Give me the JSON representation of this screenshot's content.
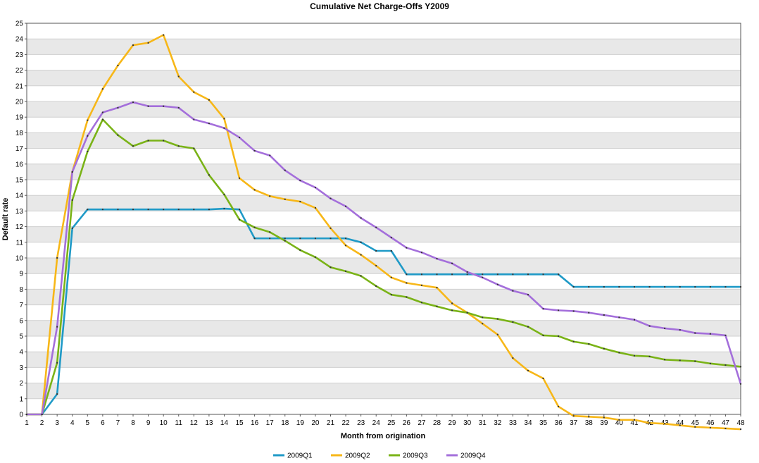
{
  "chart_data": {
    "type": "line",
    "title": "Cumulative Net Charge-Offs  Y2009",
    "xlabel": "Month from origination",
    "ylabel": "Default rate",
    "x": [
      1,
      2,
      3,
      4,
      5,
      6,
      7,
      8,
      9,
      10,
      11,
      12,
      13,
      14,
      15,
      16,
      17,
      18,
      19,
      20,
      21,
      22,
      23,
      24,
      25,
      26,
      27,
      28,
      29,
      30,
      31,
      32,
      33,
      34,
      35,
      36,
      37,
      38,
      39,
      40,
      41,
      42,
      43,
      44,
      45,
      46,
      47,
      48
    ],
    "xlim": [
      1,
      48
    ],
    "ylim": [
      0,
      25
    ],
    "yticks": [
      0,
      1,
      2,
      3,
      4,
      5,
      6,
      7,
      8,
      9,
      10,
      11,
      12,
      13,
      14,
      15,
      16,
      17,
      18,
      19,
      20,
      21,
      22,
      23,
      24,
      25
    ],
    "grid": true,
    "grid_style": "alternating horizontal bands",
    "legend_position": "bottom-center",
    "series": [
      {
        "name": "2009Q1",
        "color": "#1f9ac7",
        "values": [
          0,
          0,
          1.3,
          11.9,
          13.1,
          13.1,
          13.1,
          13.1,
          13.1,
          13.1,
          13.1,
          13.1,
          13.1,
          13.15,
          13.1,
          11.25,
          11.25,
          11.25,
          11.25,
          11.25,
          11.25,
          11.25,
          11.0,
          10.45,
          10.45,
          8.95,
          8.95,
          8.95,
          8.95,
          8.95,
          8.95,
          8.95,
          8.95,
          8.95,
          8.95,
          8.95,
          8.15,
          8.15,
          8.15,
          8.15,
          8.15,
          8.15,
          8.15,
          8.15,
          8.15,
          8.15,
          8.15,
          8.15
        ]
      },
      {
        "name": "2009Q2",
        "color": "#f7b718",
        "values": [
          0,
          0,
          10.0,
          15.5,
          18.8,
          20.8,
          22.3,
          23.6,
          23.75,
          24.25,
          21.6,
          20.6,
          20.1,
          18.9,
          15.1,
          14.35,
          13.95,
          13.75,
          13.6,
          13.2,
          11.9,
          10.8,
          10.2,
          9.5,
          8.75,
          8.4,
          8.25,
          8.1,
          7.1,
          6.5,
          5.8,
          5.1,
          3.6,
          2.8,
          2.3,
          0.5,
          -0.1,
          -0.15,
          -0.2,
          -0.35,
          -0.35,
          -0.55,
          -0.6,
          -0.7,
          -0.8,
          -0.85,
          -0.9,
          -0.95
        ]
      },
      {
        "name": "2009Q3",
        "color": "#7ab317",
        "values": [
          0,
          0,
          3.3,
          13.7,
          16.8,
          18.85,
          17.85,
          17.15,
          17.5,
          17.5,
          17.15,
          17.0,
          15.3,
          14.05,
          12.45,
          11.95,
          11.65,
          11.1,
          10.5,
          10.05,
          9.4,
          9.15,
          8.85,
          8.2,
          7.65,
          7.5,
          7.15,
          6.9,
          6.65,
          6.5,
          6.2,
          6.1,
          5.9,
          5.6,
          5.05,
          5.0,
          4.65,
          4.5,
          4.2,
          3.95,
          3.75,
          3.7,
          3.5,
          3.45,
          3.4,
          3.25,
          3.15,
          3.05
        ]
      },
      {
        "name": "2009Q4",
        "color": "#a46fdb",
        "values": [
          0,
          0,
          5.6,
          15.5,
          17.8,
          19.3,
          19.6,
          19.95,
          19.7,
          19.7,
          19.6,
          18.85,
          18.6,
          18.3,
          17.7,
          16.85,
          16.55,
          15.6,
          14.95,
          14.5,
          13.8,
          13.3,
          12.55,
          11.95,
          11.3,
          10.65,
          10.35,
          9.95,
          9.65,
          9.1,
          8.75,
          8.3,
          7.9,
          7.65,
          6.75,
          6.65,
          6.6,
          6.5,
          6.35,
          6.2,
          6.05,
          5.65,
          5.5,
          5.4,
          5.2,
          5.15,
          5.05,
          1.95
        ]
      }
    ]
  }
}
